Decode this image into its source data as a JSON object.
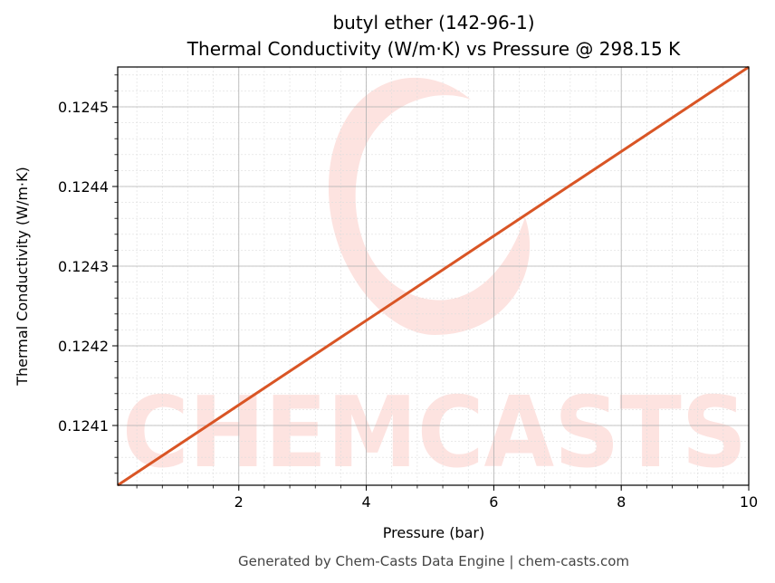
{
  "chart_data": {
    "type": "line",
    "title": "butyl ether (142-96-1)",
    "subtitle": "Thermal Conductivity (W/m·K) vs Pressure @ 298.15 K",
    "xlabel": "Pressure (bar)",
    "ylabel": "Thermal Conductivity (W/m·K)",
    "xlim": [
      0.1,
      10
    ],
    "ylim": [
      0.124025,
      0.12455
    ],
    "xticks": [
      2,
      4,
      6,
      8,
      10
    ],
    "xtick_labels": [
      "2",
      "4",
      "6",
      "8",
      "10"
    ],
    "yticks": [
      0.1241,
      0.1242,
      0.1243,
      0.1244,
      0.1245
    ],
    "ytick_labels": [
      "0.1241",
      "0.1242",
      "0.1243",
      "0.1244",
      "0.1245"
    ],
    "grid": true,
    "series": [
      {
        "x": [
          0.1,
          10
        ],
        "y": [
          0.124025,
          0.12455
        ],
        "color": "#d95525"
      }
    ]
  },
  "watermark": {
    "text": "CHEMCASTS",
    "color": "#fde3e0"
  },
  "footer": {
    "text": "Generated by Chem-Casts Data Engine | chem-casts.com"
  }
}
